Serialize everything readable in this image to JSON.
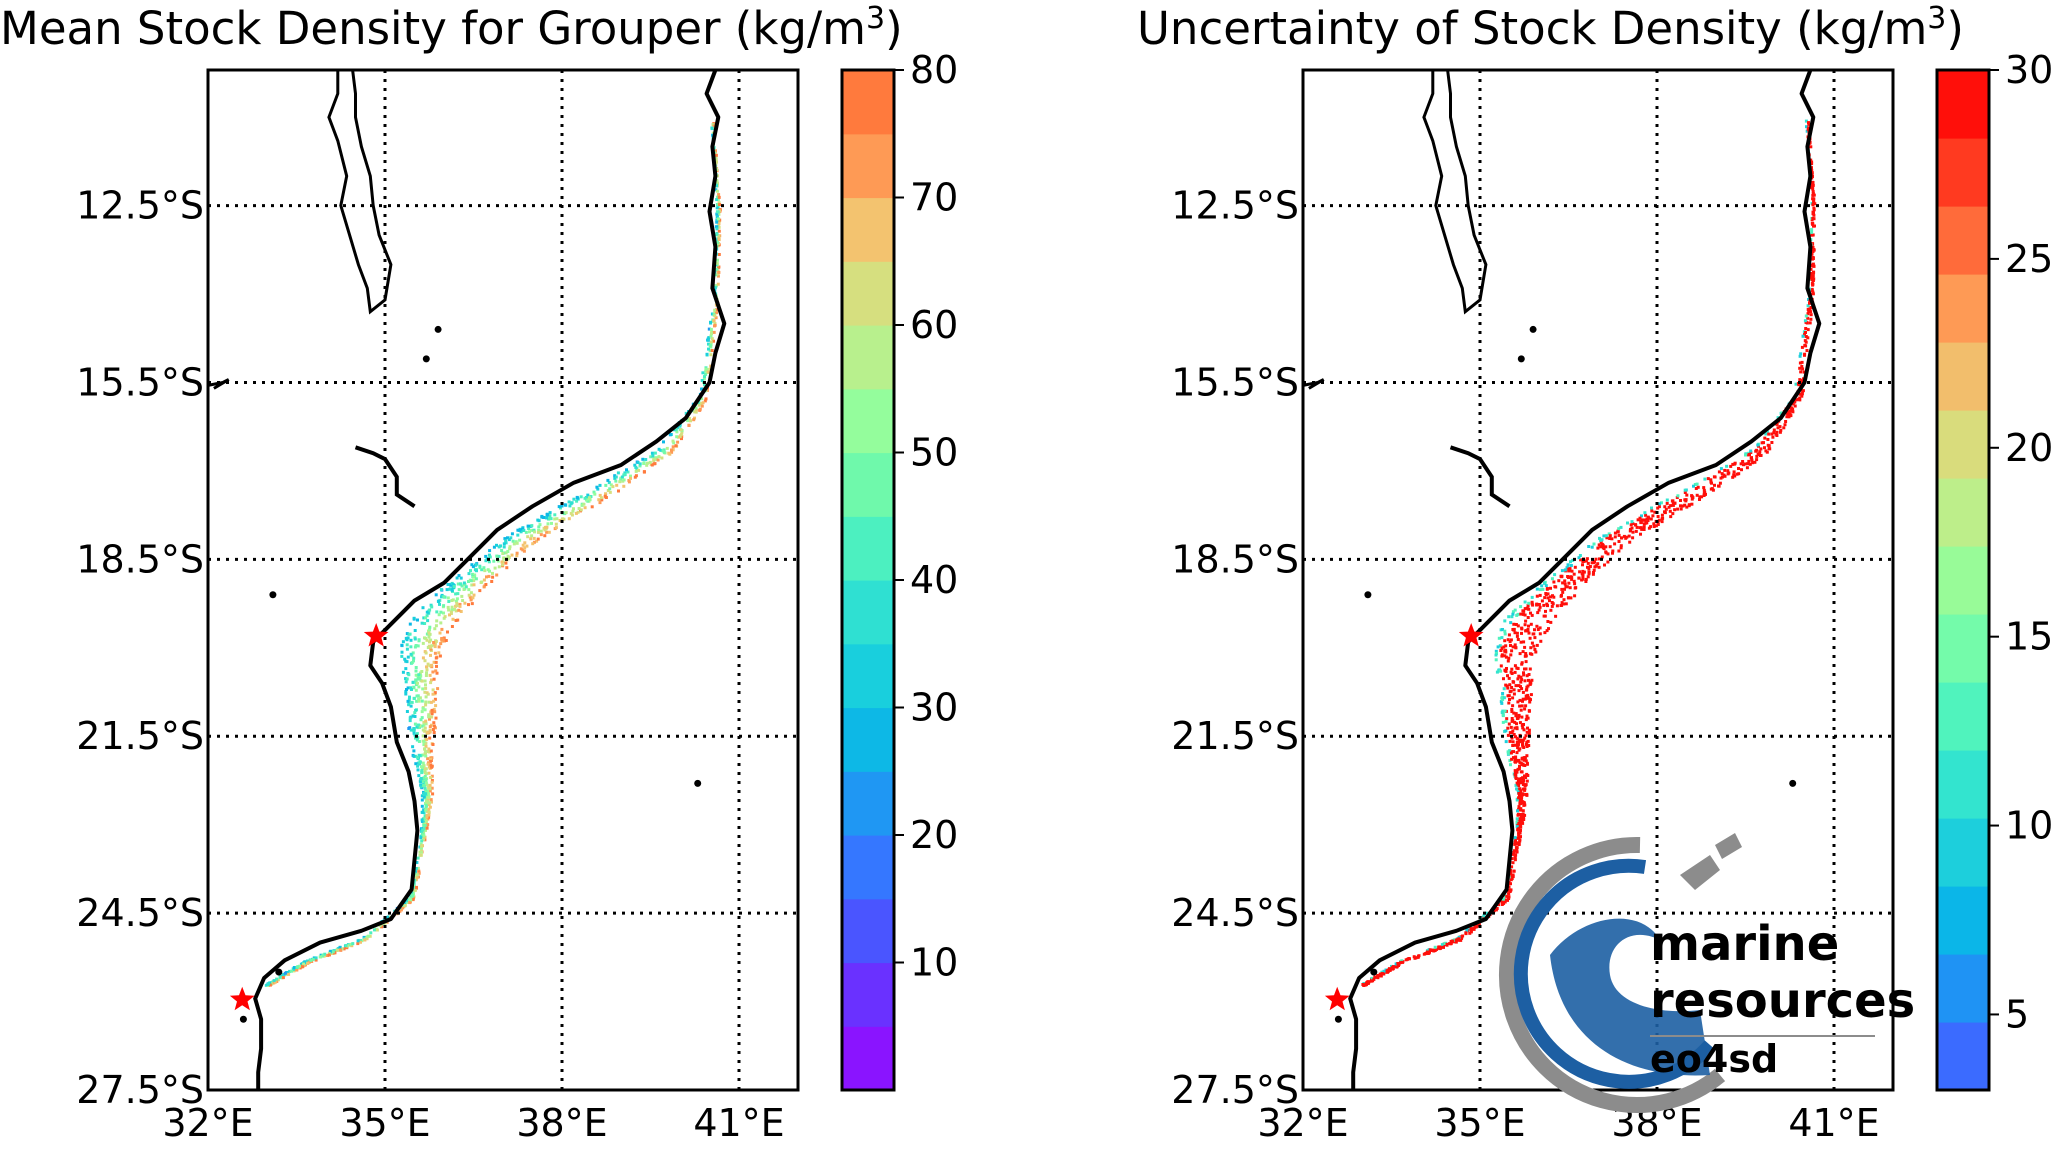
{
  "chart_data": [
    {
      "type": "heatmap",
      "title": "Mean Stock Density for Grouper (kg/m",
      "title_exponent": "3",
      "title_close": ")",
      "x_ticks": [
        "32°E",
        "35°E",
        "38°E",
        "41°E"
      ],
      "x_tick_values": [
        32,
        35,
        38,
        41
      ],
      "y_ticks": [
        "12.5°S",
        "15.5°S",
        "18.5°S",
        "21.5°S",
        "24.5°S",
        "27.5°S"
      ],
      "y_tick_values": [
        -12.5,
        -15.5,
        -18.5,
        -21.5,
        -24.5,
        -27.5
      ],
      "xlim": [
        32,
        42
      ],
      "ylim": [
        -27.5,
        -10.2
      ],
      "grid": "dotted",
      "colorbar": {
        "range": [
          0,
          80
        ],
        "levels": 16,
        "tick_values": [
          10,
          20,
          30,
          40,
          50,
          60,
          70,
          80
        ],
        "tick_labels": [
          "10",
          "20",
          "30",
          "40",
          "50",
          "60",
          "70",
          "80"
        ],
        "colors": [
          "#8a14ff",
          "#6a31ff",
          "#4a55ff",
          "#3577ff",
          "#1f97f3",
          "#0db8e6",
          "#19cfdd",
          "#2fe0d2",
          "#4cf0c0",
          "#6ff9ab",
          "#94fd9c",
          "#b8f08d",
          "#d6df7f",
          "#f3c36f",
          "#fe9a55",
          "#ff7a3d"
        ]
      },
      "markers": [
        {
          "lon": 34.85,
          "lat": -19.8,
          "symbol": "star",
          "color": "#ff0000"
        },
        {
          "lon": 32.58,
          "lat": -25.97,
          "symbol": "star",
          "color": "#ff0000"
        }
      ]
    },
    {
      "type": "heatmap",
      "title": "Uncertainty of Stock Density (kg/m",
      "title_exponent": "3",
      "title_close": ")",
      "x_ticks": [
        "32°E",
        "35°E",
        "38°E",
        "41°E"
      ],
      "x_tick_values": [
        32,
        35,
        38,
        41
      ],
      "y_ticks": [
        "12.5°S",
        "15.5°S",
        "18.5°S",
        "21.5°S",
        "24.5°S",
        "27.5°S"
      ],
      "y_tick_values": [
        -12.5,
        -15.5,
        -18.5,
        -21.5,
        -24.5,
        -27.5
      ],
      "xlim": [
        32,
        42
      ],
      "ylim": [
        -27.5,
        -10.2
      ],
      "grid": "dotted",
      "colorbar": {
        "range": [
          3,
          30
        ],
        "levels": 15,
        "tick_values": [
          5,
          10,
          15,
          20,
          25,
          30
        ],
        "tick_labels": [
          "5",
          "10",
          "15",
          "20",
          "25",
          "30"
        ],
        "colors": [
          "#3b6bff",
          "#1f93f4",
          "#0bb6e8",
          "#1dcfdc",
          "#33e4cf",
          "#50f3bd",
          "#74fbaa",
          "#98fb98",
          "#bdee8a",
          "#d9dc7c",
          "#f2be6c",
          "#fe9a55",
          "#ff6b3a",
          "#ff3a20",
          "#ff0f0a"
        ]
      },
      "markers": [
        {
          "lon": 34.85,
          "lat": -19.8,
          "symbol": "star",
          "color": "#ff0000"
        },
        {
          "lon": 32.58,
          "lat": -25.97,
          "symbol": "star",
          "color": "#ff0000"
        }
      ]
    }
  ],
  "logo": {
    "line1": "marine",
    "line2": "resources",
    "line3": "eo4sd",
    "colors": {
      "blue": "#1d5fa3",
      "gray": "#8c8c8c"
    }
  }
}
